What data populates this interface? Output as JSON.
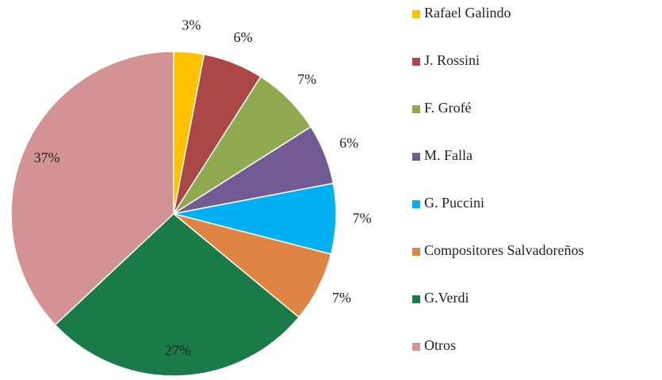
{
  "chart_data": {
    "type": "pie",
    "categories": [
      "Rafael Galindo",
      "J. Rossini",
      "F. Grofé",
      "M. Falla",
      "G. Puccini",
      "Compositores Salvadoreños",
      "G.Verdi",
      "Otros"
    ],
    "values": [
      3,
      6,
      7,
      6,
      7,
      7,
      27,
      37
    ],
    "value_labels": [
      "3%",
      "6%",
      "7%",
      "6%",
      "7%",
      "7%",
      "27%",
      "37%"
    ],
    "colors": [
      "#FFC000",
      "#AB4744",
      "#8FAA4E",
      "#725A94",
      "#00B0F0",
      "#DF8442",
      "#1B7B48",
      "#D39392"
    ],
    "legend": "right"
  }
}
